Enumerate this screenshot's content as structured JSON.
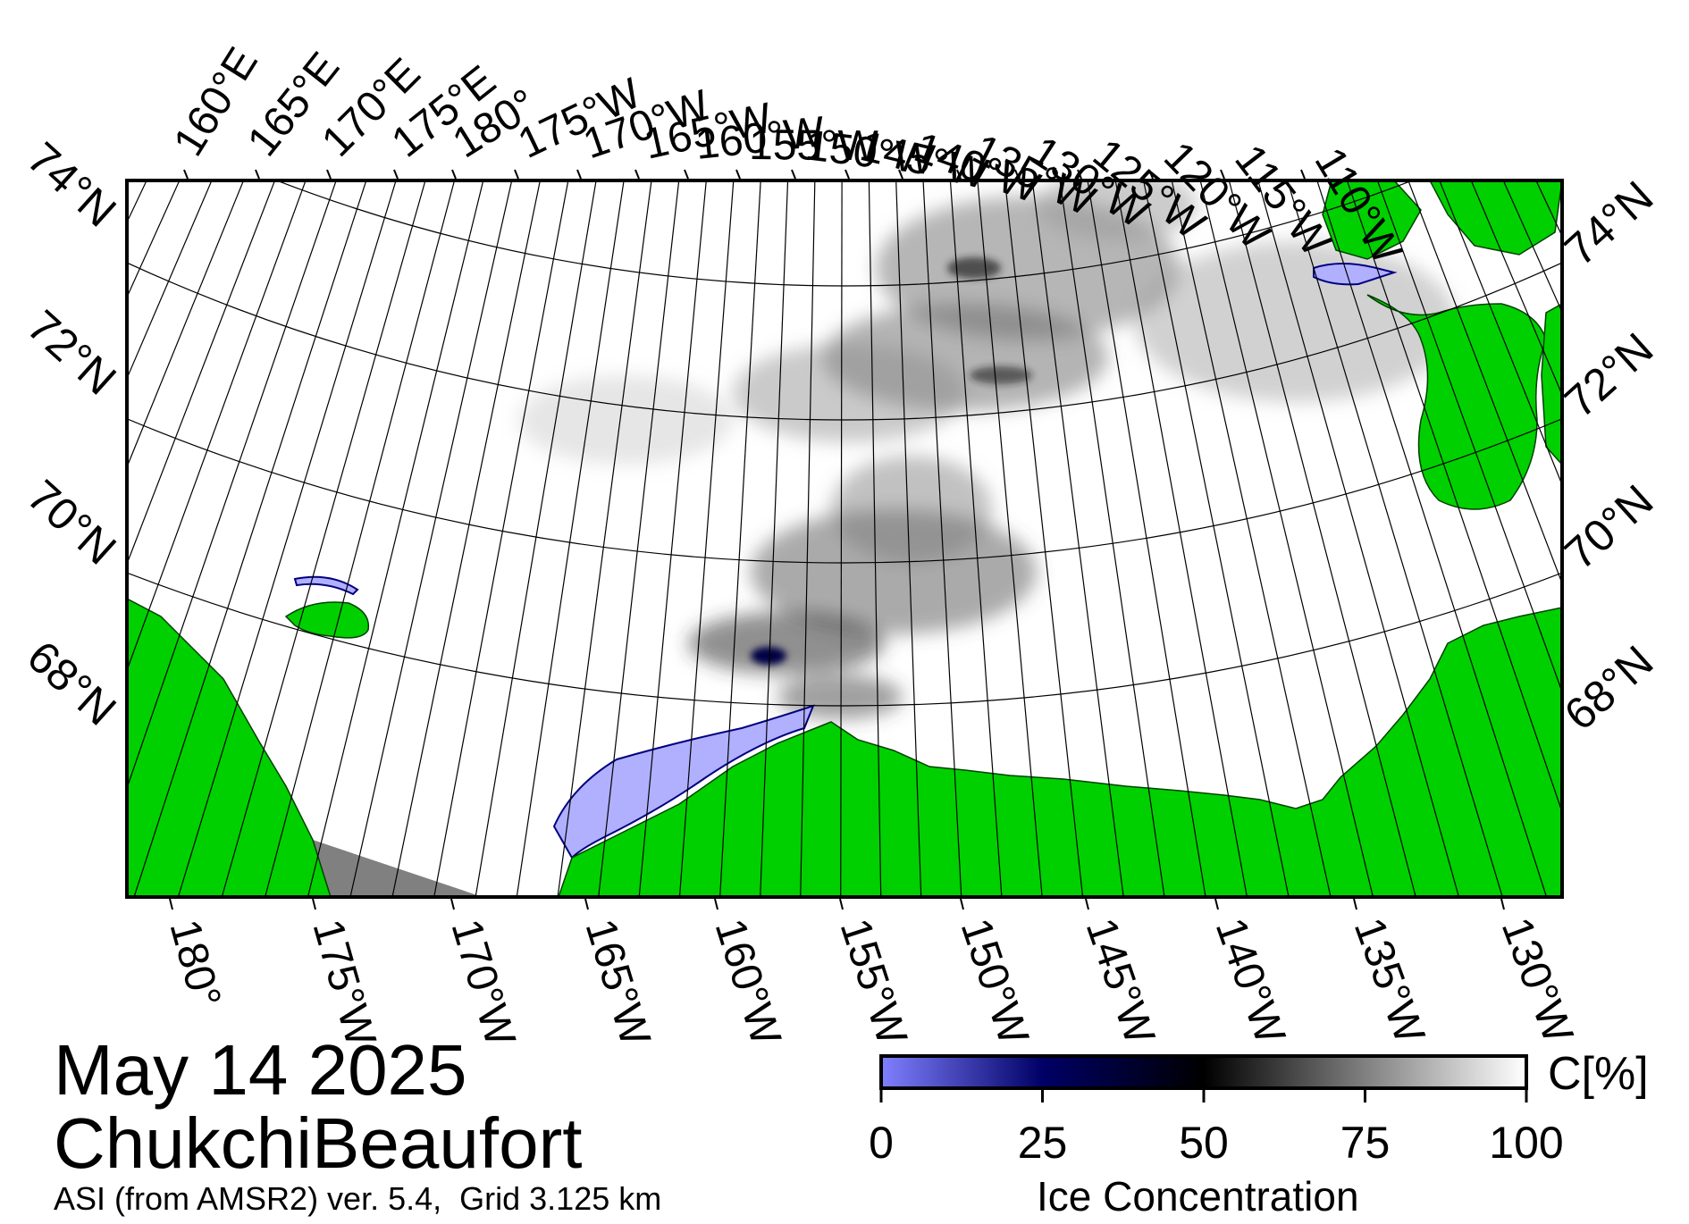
{
  "title": {
    "date": "May 14 2025",
    "region": "ChukchiBeaufort",
    "source": "ASI (from AMSR2) ver. 5.4,  Grid 3.125 km"
  },
  "top_lon_labels": [
    "160°E",
    "165°E",
    "170°E",
    "175°E",
    "180°",
    "175°W",
    "170°W",
    "165°W",
    "160°W",
    "155°W",
    "150°W",
    "145°W",
    "140°W",
    "135°W",
    "130°W",
    "125°W",
    "120°W",
    "115°W",
    "110°W"
  ],
  "bottom_lon_labels": [
    "180°",
    "175°W",
    "170°W",
    "165°W",
    "160°W",
    "155°W",
    "150°W",
    "145°W",
    "140°W",
    "135°W",
    "130°W"
  ],
  "left_lat_labels": [
    "74°N",
    "72°N",
    "70°N",
    "68°N"
  ],
  "right_lat_labels": [
    "74°N",
    "72°N",
    "70°N",
    "68°N"
  ],
  "colorbar": {
    "title": "Ice Concentration",
    "unit": "C[%]",
    "ticks": [
      "0",
      "25",
      "50",
      "75",
      "100"
    ],
    "min": 0,
    "max": 100,
    "colors": [
      "#8080ff",
      "#000066",
      "#000000",
      "#808080",
      "#ffffff"
    ]
  },
  "colors": {
    "land": "#00d000",
    "no_data": "#808080",
    "open_water": "#ffffff",
    "low_concentration": "#b0b0ff",
    "graticule": "#000000"
  }
}
